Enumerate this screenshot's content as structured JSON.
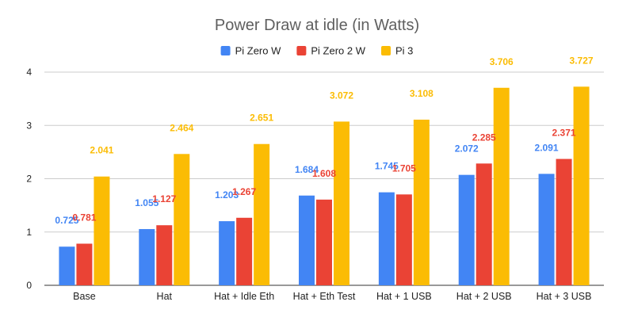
{
  "chart_data": {
    "type": "bar",
    "title": "Power Draw at idle (in Watts)",
    "xlabel": "",
    "ylabel": "",
    "ylim": [
      0,
      4
    ],
    "yticks": [
      "0",
      "1",
      "2",
      "3",
      "4"
    ],
    "grid": true,
    "legend_position": "top",
    "categories": [
      "Base",
      "Hat",
      "Hat + Idle Eth",
      "Hat + Eth Test",
      "Hat + 1 USB",
      "Hat + 2 USB",
      "Hat + 3 USB"
    ],
    "series": [
      {
        "name": "Pi Zero W",
        "color": "#4285f4",
        "values": [
          0.725,
          1.055,
          1.203,
          1.684,
          1.745,
          2.072,
          2.091
        ],
        "labels": [
          "0.725",
          "1.055",
          "1.203",
          "1.684",
          "1.745",
          "2.072",
          "2.091"
        ]
      },
      {
        "name": "Pi Zero 2 W",
        "color": "#ea4335",
        "values": [
          0.781,
          1.127,
          1.267,
          1.608,
          1.705,
          2.285,
          2.371
        ],
        "labels": [
          "0.781",
          "1.127",
          "1.267",
          "1.608",
          "1.705",
          "2.285",
          "2.371"
        ]
      },
      {
        "name": "Pi 3",
        "color": "#fbbc04",
        "values": [
          2.041,
          2.464,
          2.651,
          3.072,
          3.108,
          3.706,
          3.727
        ],
        "labels": [
          "2.041",
          "2.464",
          "2.651",
          "3.072",
          "3.108",
          "3.706",
          "3.727"
        ]
      }
    ]
  }
}
